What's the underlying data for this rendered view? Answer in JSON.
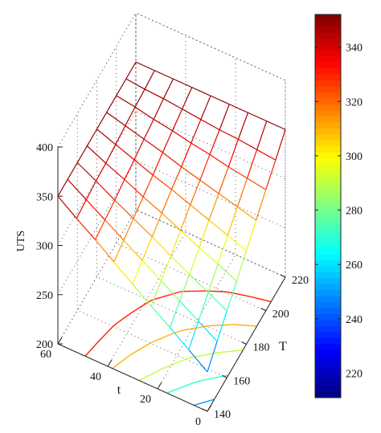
{
  "chart_data": {
    "type": "surface",
    "zlabel": "UTS",
    "xlabel": "t",
    "ylabel": "T",
    "x": [
      0,
      7.5,
      15,
      22.5,
      30,
      37.5,
      45,
      52.5,
      60
    ],
    "y": [
      140,
      150,
      160,
      170,
      180,
      190,
      200,
      210,
      220
    ],
    "z": [
      [
        240,
        254,
        268,
        281,
        295,
        309,
        323,
        336,
        350
      ],
      [
        254,
        266,
        278,
        290,
        302,
        314,
        326,
        338,
        350
      ],
      [
        268,
        278,
        288,
        298,
        309,
        319,
        329,
        340,
        350
      ],
      [
        281,
        290,
        298,
        307,
        316,
        324,
        333,
        341,
        350
      ],
      [
        295,
        302,
        309,
        316,
        323,
        329,
        336,
        343,
        350
      ],
      [
        309,
        314,
        319,
        324,
        329,
        335,
        340,
        345,
        350
      ],
      [
        323,
        326,
        329,
        333,
        336,
        340,
        343,
        347,
        350
      ],
      [
        336,
        338,
        340,
        341,
        343,
        345,
        347,
        348,
        350
      ],
      [
        350,
        350,
        350,
        350,
        350,
        350,
        350,
        350,
        350
      ]
    ],
    "contour_levels": [
      250,
      270,
      290,
      310,
      330
    ],
    "xlim": [
      0,
      60
    ],
    "xticks": [
      0,
      20,
      40,
      60
    ],
    "ylim": [
      140,
      220
    ],
    "yticks": [
      140,
      160,
      180,
      200,
      220
    ],
    "zlim": [
      200,
      400
    ],
    "zticks": [
      200,
      250,
      300,
      350,
      400
    ],
    "clim": [
      211,
      352
    ],
    "cticks": [
      220,
      240,
      260,
      280,
      300,
      320,
      340
    ],
    "colormap": "jet",
    "grid": true
  }
}
